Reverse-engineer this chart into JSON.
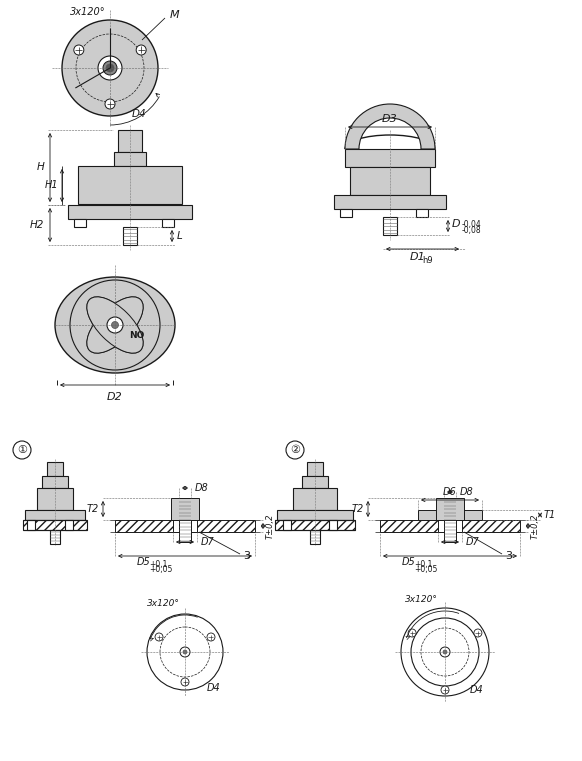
{
  "bg_color": "#ffffff",
  "line_color": "#1a1a1a",
  "gray_fill": "#cccccc",
  "fig_width": 5.82,
  "fig_height": 7.61,
  "labels": {
    "M": "M",
    "3x120": "3x120°",
    "D4": "D4",
    "H": "H",
    "H1": "H1",
    "H2": "H2",
    "L": "L",
    "D3": "D3",
    "D_tol": "D",
    "D1": "D1",
    "D1_sub": "h9",
    "D2": "D2",
    "T2": "T2",
    "D8": "D8",
    "T_tol": "T±0,2",
    "D7": "D7",
    "D5": "D5",
    "D5_sup": "+0,1",
    "D5_sub": "+0,05",
    "num3": "3",
    "D6": "D6",
    "T1": "T1",
    "circle1": "①",
    "circle2": "②",
    "NO": "NO",
    "D_sup": "-0,04",
    "D_sub": "-0,08"
  }
}
